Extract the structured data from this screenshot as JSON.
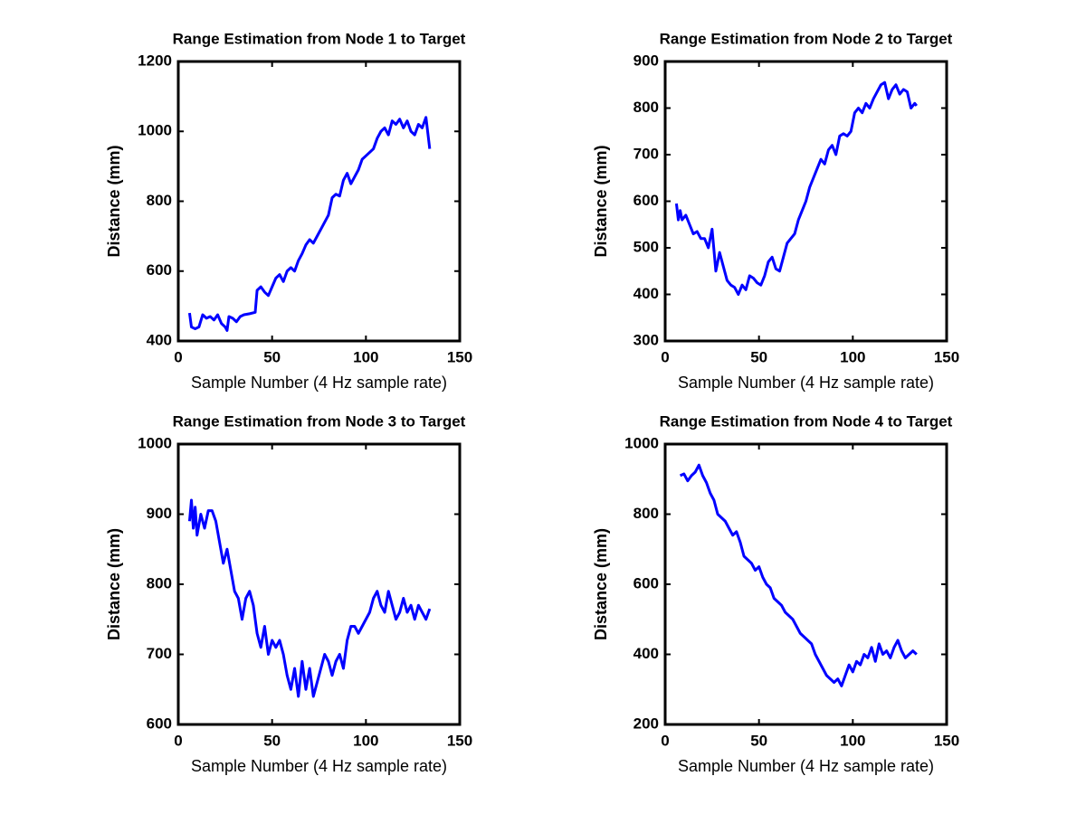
{
  "chart_data": [
    {
      "type": "line",
      "title": "Range Estimation from Node 1 to Target",
      "xlabel": "Sample Number (4 Hz sample rate)",
      "ylabel": "Distance (mm)",
      "x": [
        6,
        7,
        9,
        11,
        13,
        15,
        17,
        19,
        21,
        23,
        25,
        26,
        27,
        29,
        31,
        33,
        35,
        38,
        41,
        42,
        44,
        46,
        48,
        50,
        52,
        54,
        56,
        58,
        60,
        62,
        64,
        66,
        68,
        70,
        72,
        74,
        76,
        78,
        80,
        82,
        84,
        86,
        88,
        90,
        92,
        94,
        96,
        98,
        100,
        102,
        104,
        106,
        108,
        110,
        112,
        114,
        116,
        118,
        120,
        122,
        124,
        126,
        128,
        130,
        132,
        134
      ],
      "series": [
        {
          "color": "#0000ff",
          "values": [
            480,
            440,
            435,
            440,
            475,
            465,
            470,
            460,
            475,
            450,
            440,
            430,
            470,
            465,
            455,
            470,
            475,
            478,
            482,
            545,
            555,
            540,
            530,
            555,
            580,
            590,
            570,
            600,
            610,
            600,
            630,
            650,
            675,
            690,
            680,
            700,
            720,
            740,
            760,
            810,
            820,
            815,
            860,
            880,
            850,
            870,
            890,
            920,
            930,
            940,
            950,
            980,
            1000,
            1010,
            990,
            1030,
            1020,
            1035,
            1010,
            1030,
            1000,
            990,
            1020,
            1010,
            1040,
            950
          ]
        }
      ],
      "xlim": [
        0,
        150
      ],
      "xticks": [
        0,
        50,
        100,
        150
      ],
      "ylim": [
        400,
        1200
      ],
      "yticks": [
        400,
        600,
        800,
        1000,
        1200
      ]
    },
    {
      "type": "line",
      "title": "Range Estimation from Node 2 to Target",
      "xlabel": "Sample Number (4 Hz sample rate)",
      "ylabel": "Distance (mm)",
      "x": [
        6,
        7,
        8,
        9,
        11,
        13,
        15,
        17,
        19,
        21,
        23,
        25,
        27,
        29,
        31,
        33,
        35,
        37,
        39,
        41,
        43,
        45,
        47,
        49,
        51,
        53,
        55,
        57,
        59,
        61,
        63,
        65,
        67,
        69,
        71,
        73,
        75,
        77,
        79,
        81,
        83,
        85,
        87,
        89,
        91,
        93,
        95,
        97,
        99,
        101,
        103,
        105,
        107,
        109,
        111,
        113,
        115,
        117,
        119,
        121,
        123,
        125,
        127,
        129,
        131,
        133,
        134
      ],
      "series": [
        {
          "color": "#0000ff",
          "values": [
            595,
            560,
            580,
            560,
            570,
            550,
            530,
            535,
            520,
            520,
            500,
            540,
            450,
            490,
            460,
            430,
            420,
            415,
            400,
            420,
            410,
            440,
            435,
            425,
            420,
            440,
            470,
            480,
            455,
            450,
            480,
            510,
            520,
            530,
            560,
            580,
            600,
            630,
            650,
            670,
            690,
            680,
            710,
            720,
            700,
            740,
            745,
            740,
            750,
            790,
            800,
            790,
            810,
            800,
            820,
            835,
            850,
            855,
            820,
            840,
            850,
            830,
            840,
            835,
            800,
            810,
            805
          ]
        }
      ],
      "xlim": [
        0,
        150
      ],
      "xticks": [
        0,
        50,
        100,
        150
      ],
      "ylim": [
        300,
        900
      ],
      "yticks": [
        300,
        400,
        500,
        600,
        700,
        800,
        900
      ]
    },
    {
      "type": "line",
      "title": "Range Estimation from Node 3 to Target",
      "xlabel": "Sample Number (4 Hz sample rate)",
      "ylabel": "Distance (mm)",
      "x": [
        6,
        7,
        8,
        9,
        10,
        12,
        14,
        16,
        18,
        20,
        22,
        24,
        26,
        28,
        30,
        32,
        34,
        36,
        38,
        40,
        42,
        44,
        46,
        48,
        50,
        52,
        54,
        56,
        58,
        60,
        62,
        64,
        66,
        68,
        70,
        72,
        74,
        76,
        78,
        80,
        82,
        84,
        86,
        88,
        90,
        92,
        94,
        96,
        98,
        100,
        102,
        104,
        106,
        108,
        110,
        112,
        114,
        116,
        118,
        120,
        122,
        124,
        126,
        128,
        130,
        132,
        134
      ],
      "series": [
        {
          "color": "#0000ff",
          "values": [
            890,
            920,
            880,
            910,
            870,
            900,
            880,
            905,
            905,
            890,
            860,
            830,
            850,
            820,
            790,
            780,
            750,
            780,
            790,
            770,
            730,
            710,
            740,
            700,
            720,
            710,
            720,
            700,
            670,
            650,
            680,
            640,
            690,
            650,
            680,
            640,
            660,
            680,
            700,
            690,
            670,
            690,
            700,
            680,
            720,
            740,
            740,
            730,
            740,
            750,
            760,
            780,
            790,
            770,
            760,
            790,
            770,
            750,
            760,
            780,
            760,
            770,
            750,
            770,
            760,
            750,
            765
          ]
        }
      ],
      "xlim": [
        0,
        150
      ],
      "xticks": [
        0,
        50,
        100,
        150
      ],
      "ylim": [
        600,
        1000
      ],
      "yticks": [
        600,
        700,
        800,
        900,
        1000
      ]
    },
    {
      "type": "line",
      "title": "Range Estimation from Node 4 to Target",
      "xlabel": "Sample Number (4 Hz sample rate)",
      "ylabel": "Distance (mm)",
      "x": [
        8,
        10,
        12,
        14,
        16,
        18,
        20,
        22,
        24,
        26,
        28,
        30,
        32,
        34,
        36,
        38,
        40,
        42,
        44,
        46,
        48,
        50,
        52,
        54,
        56,
        58,
        60,
        62,
        64,
        66,
        68,
        70,
        72,
        74,
        76,
        78,
        80,
        82,
        84,
        86,
        88,
        90,
        92,
        94,
        96,
        98,
        100,
        102,
        104,
        106,
        108,
        110,
        112,
        114,
        116,
        118,
        120,
        122,
        124,
        126,
        128,
        130,
        132,
        134
      ],
      "series": [
        {
          "color": "#0000ff",
          "values": [
            910,
            915,
            895,
            910,
            920,
            940,
            910,
            890,
            860,
            840,
            800,
            790,
            780,
            760,
            740,
            750,
            720,
            680,
            670,
            660,
            640,
            650,
            620,
            600,
            590,
            560,
            550,
            540,
            520,
            510,
            500,
            480,
            460,
            450,
            440,
            430,
            400,
            380,
            360,
            340,
            330,
            320,
            330,
            310,
            340,
            370,
            350,
            380,
            370,
            400,
            390,
            420,
            380,
            430,
            400,
            410,
            390,
            420,
            440,
            410,
            390,
            400,
            410,
            400
          ]
        }
      ],
      "xlim": [
        0,
        150
      ],
      "xticks": [
        0,
        50,
        100,
        150
      ],
      "ylim": [
        200,
        1000
      ],
      "yticks": [
        200,
        400,
        600,
        800,
        1000
      ]
    }
  ]
}
